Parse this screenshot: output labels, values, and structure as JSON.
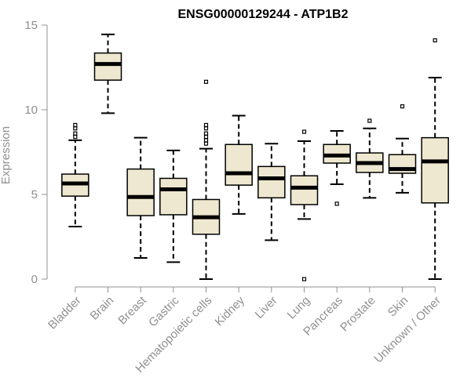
{
  "chart_data": {
    "type": "boxplot",
    "title": "ENSG00000129244 - ATP1B2",
    "xlabel": "",
    "ylabel": "Expression",
    "ylim": [
      0,
      15
    ],
    "yticks": [
      0,
      5,
      10,
      15
    ],
    "grid": false,
    "legend": "none",
    "colors": {
      "box_fill": "#efe8d0",
      "stroke": "#000000",
      "axis": "#909090",
      "label": "#909090"
    },
    "categories": [
      "Bladder",
      "Brain",
      "Breast",
      "Gastric",
      "Hematopoietic cells",
      "Kidney",
      "Liver",
      "Lung",
      "Pancreas",
      "Prostate",
      "Skin",
      "Unknown / Other"
    ],
    "boxes": [
      {
        "name": "Bladder",
        "whisker_low": 3.1,
        "q1": 4.9,
        "median": 5.65,
        "q3": 6.2,
        "whisker_high": 8.2,
        "outliers": [
          8.4,
          8.6,
          8.9,
          9.1
        ]
      },
      {
        "name": "Brain",
        "whisker_low": 9.8,
        "q1": 11.75,
        "median": 12.7,
        "q3": 13.35,
        "whisker_high": 14.45,
        "outliers": []
      },
      {
        "name": "Breast",
        "whisker_low": 1.25,
        "q1": 3.75,
        "median": 4.85,
        "q3": 6.5,
        "whisker_high": 8.35,
        "outliers": []
      },
      {
        "name": "Gastric",
        "whisker_low": 1.0,
        "q1": 3.8,
        "median": 5.3,
        "q3": 5.95,
        "whisker_high": 7.6,
        "outliers": []
      },
      {
        "name": "Hematopoietic cells",
        "whisker_low": 0.0,
        "q1": 2.65,
        "median": 3.65,
        "q3": 4.7,
        "whisker_high": 7.7,
        "outliers": [
          8.0,
          8.2,
          8.4,
          8.6,
          8.9,
          9.1,
          11.65
        ]
      },
      {
        "name": "Kidney",
        "whisker_low": 3.85,
        "q1": 5.55,
        "median": 6.25,
        "q3": 7.95,
        "whisker_high": 9.65,
        "outliers": []
      },
      {
        "name": "Liver",
        "whisker_low": 2.3,
        "q1": 4.8,
        "median": 5.95,
        "q3": 6.65,
        "whisker_high": 8.0,
        "outliers": []
      },
      {
        "name": "Lung",
        "whisker_low": 3.55,
        "q1": 4.4,
        "median": 5.4,
        "q3": 6.1,
        "whisker_high": 8.15,
        "outliers": [
          8.7,
          0.0
        ]
      },
      {
        "name": "Pancreas",
        "whisker_low": 5.6,
        "q1": 6.85,
        "median": 7.3,
        "q3": 7.95,
        "whisker_high": 8.75,
        "outliers": [
          4.45
        ]
      },
      {
        "name": "Prostate",
        "whisker_low": 4.8,
        "q1": 6.3,
        "median": 6.85,
        "q3": 7.45,
        "whisker_high": 8.9,
        "outliers": [
          9.35
        ]
      },
      {
        "name": "Skin",
        "whisker_low": 5.1,
        "q1": 6.25,
        "median": 6.5,
        "q3": 7.35,
        "whisker_high": 8.3,
        "outliers": [
          10.2
        ]
      },
      {
        "name": "Unknown / Other",
        "whisker_low": 0.0,
        "q1": 4.5,
        "median": 6.95,
        "q3": 8.35,
        "whisker_high": 11.9,
        "outliers": [
          14.1
        ]
      }
    ]
  }
}
